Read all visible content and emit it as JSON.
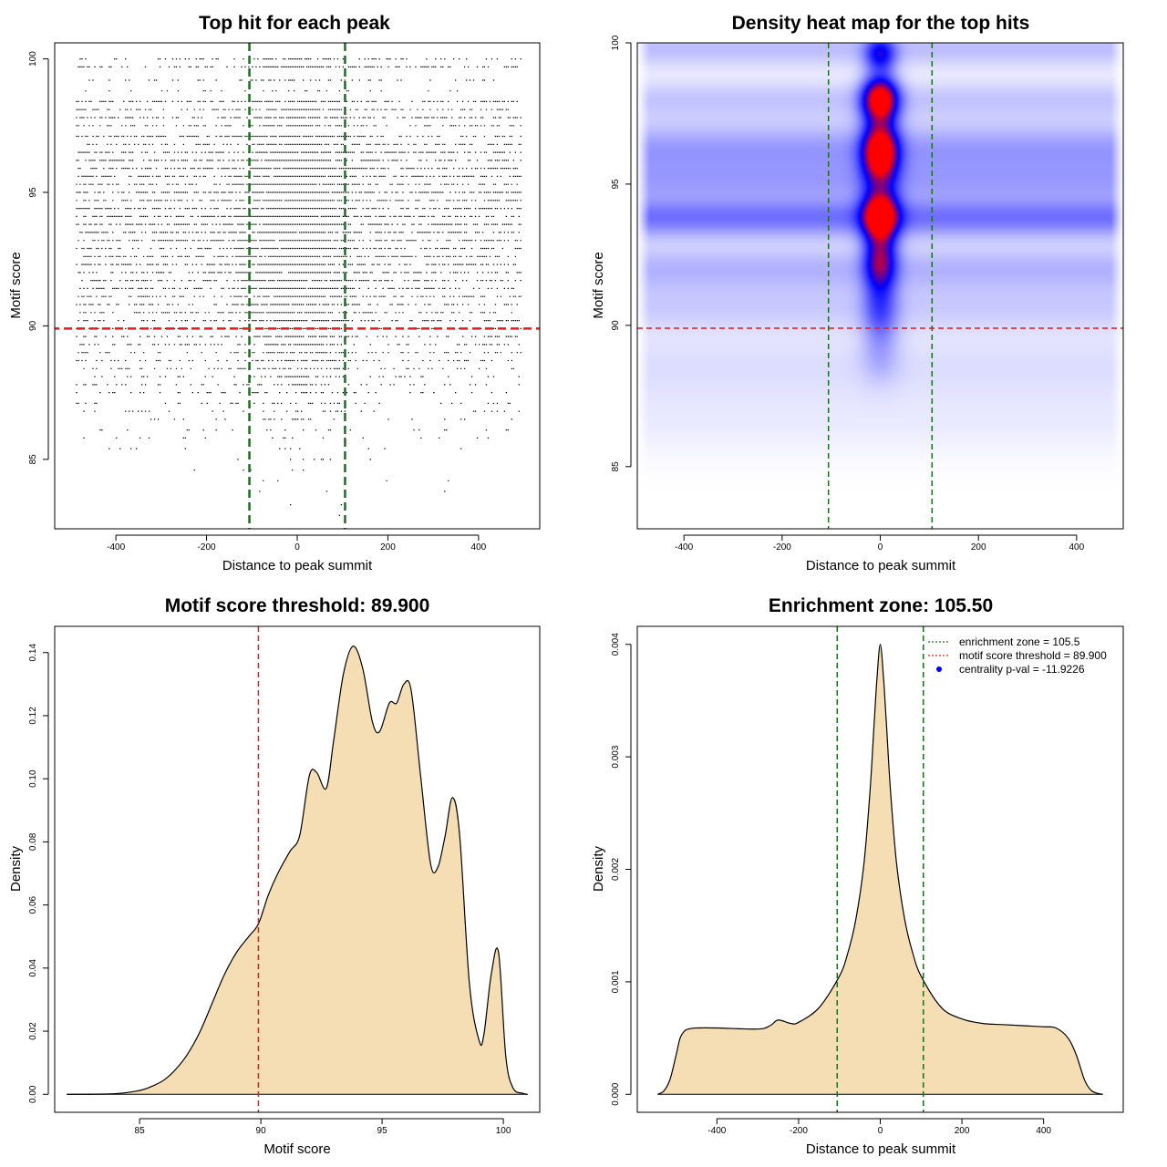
{
  "colors": {
    "threshold": "#E41A1C",
    "zone": "#1B6E1B",
    "fill": "#F5DEB3",
    "heat_low": "#FFFFFF",
    "heat_mid": "#0000FF",
    "heat_high": "#FF0000",
    "legend_point": "#0000FF"
  },
  "chart_data": [
    {
      "id": "scatter",
      "type": "scatter",
      "title": "Top hit for each peak",
      "xlabel": "Distance to peak summit",
      "ylabel": "Motif score",
      "xlim": [
        -535,
        535
      ],
      "ylim": [
        82.4,
        100.6
      ],
      "xticks": [
        -400,
        -200,
        0,
        200,
        400
      ],
      "yticks": [
        85,
        90,
        95,
        100
      ],
      "threshold": 89.9,
      "zone": 105.5,
      "x_range": [
        -490,
        495
      ],
      "score_levels": [
        {
          "y": 100.0,
          "n": 120
        },
        {
          "y": 99.7,
          "n": 170
        },
        {
          "y": 99.2,
          "n": 60
        },
        {
          "y": 98.8,
          "n": 30
        },
        {
          "y": 98.4,
          "n": 200
        },
        {
          "y": 98.1,
          "n": 180
        },
        {
          "y": 97.8,
          "n": 230
        },
        {
          "y": 97.5,
          "n": 160
        },
        {
          "y": 97.1,
          "n": 240
        },
        {
          "y": 96.8,
          "n": 200
        },
        {
          "y": 96.5,
          "n": 260
        },
        {
          "y": 96.2,
          "n": 300
        },
        {
          "y": 95.9,
          "n": 320
        },
        {
          "y": 95.6,
          "n": 300
        },
        {
          "y": 95.3,
          "n": 280
        },
        {
          "y": 95.0,
          "n": 330
        },
        {
          "y": 94.7,
          "n": 310
        },
        {
          "y": 94.4,
          "n": 330
        },
        {
          "y": 94.1,
          "n": 320
        },
        {
          "y": 93.8,
          "n": 360
        },
        {
          "y": 93.5,
          "n": 320
        },
        {
          "y": 93.2,
          "n": 300
        },
        {
          "y": 92.9,
          "n": 300
        },
        {
          "y": 92.6,
          "n": 280
        },
        {
          "y": 92.3,
          "n": 280
        },
        {
          "y": 92.0,
          "n": 280
        },
        {
          "y": 91.7,
          "n": 250
        },
        {
          "y": 91.4,
          "n": 240
        },
        {
          "y": 91.1,
          "n": 220
        },
        {
          "y": 90.8,
          "n": 210
        },
        {
          "y": 90.5,
          "n": 190
        },
        {
          "y": 90.2,
          "n": 180
        },
        {
          "y": 89.9,
          "n": 160
        },
        {
          "y": 89.6,
          "n": 150
        },
        {
          "y": 89.3,
          "n": 140
        },
        {
          "y": 89.0,
          "n": 120
        },
        {
          "y": 88.7,
          "n": 110
        },
        {
          "y": 88.4,
          "n": 95
        },
        {
          "y": 88.1,
          "n": 85
        },
        {
          "y": 87.8,
          "n": 70
        },
        {
          "y": 87.5,
          "n": 60
        },
        {
          "y": 87.1,
          "n": 50
        },
        {
          "y": 86.8,
          "n": 40
        },
        {
          "y": 86.5,
          "n": 32
        },
        {
          "y": 86.1,
          "n": 25
        },
        {
          "y": 85.8,
          "n": 18
        },
        {
          "y": 85.4,
          "n": 12
        },
        {
          "y": 85.0,
          "n": 8
        },
        {
          "y": 84.6,
          "n": 5
        },
        {
          "y": 84.2,
          "n": 4
        },
        {
          "y": 83.8,
          "n": 3
        },
        {
          "y": 83.3,
          "n": 2
        },
        {
          "y": 82.9,
          "n": 1
        }
      ],
      "center_fraction": 0.35,
      "center_sd": 60
    },
    {
      "id": "heatmap",
      "type": "heatmap",
      "title": "Density heat map for the top hits",
      "xlabel": "Distance to peak summit",
      "ylabel": "Motif score",
      "xlim": [
        -495,
        495
      ],
      "ylim": [
        82.8,
        100.0
      ],
      "xticks": [
        -400,
        -200,
        0,
        200,
        400
      ],
      "yticks": [
        85,
        90,
        95,
        100
      ],
      "threshold": 89.9,
      "zone": 105.5,
      "central_blobs": [
        {
          "x": 0,
          "y": 99.6,
          "sx": 22,
          "sy": 0.45,
          "w": 0.45
        },
        {
          "x": 0,
          "y": 98.0,
          "sx": 25,
          "sy": 0.55,
          "w": 0.95
        },
        {
          "x": 0,
          "y": 96.1,
          "sx": 25,
          "sy": 0.75,
          "w": 1.0
        },
        {
          "x": 0,
          "y": 93.9,
          "sx": 25,
          "sy": 0.6,
          "w": 0.95
        },
        {
          "x": 0,
          "y": 92.3,
          "sx": 23,
          "sy": 0.75,
          "w": 0.6
        },
        {
          "x": 0,
          "y": 90.5,
          "sx": 25,
          "sy": 0.8,
          "w": 0.28
        },
        {
          "x": 0,
          "y": 88.9,
          "sx": 28,
          "sy": 0.7,
          "w": 0.1
        }
      ],
      "background_bands": [
        {
          "y": 99.8,
          "sy": 0.5,
          "w": 0.14
        },
        {
          "y": 98.0,
          "sy": 0.5,
          "w": 0.12
        },
        {
          "y": 96.2,
          "sy": 0.7,
          "w": 0.22
        },
        {
          "y": 95.0,
          "sy": 0.5,
          "w": 0.15
        },
        {
          "y": 93.8,
          "sy": 0.5,
          "w": 0.3
        },
        {
          "y": 92.0,
          "sy": 0.6,
          "w": 0.16
        },
        {
          "y": 90.6,
          "sy": 0.6,
          "w": 0.1
        },
        {
          "y": 88.6,
          "sy": 0.9,
          "w": 0.07
        },
        {
          "y": 86.6,
          "sy": 0.9,
          "w": 0.04
        }
      ]
    },
    {
      "id": "score_density",
      "type": "area",
      "title": "Motif score threshold: 89.900",
      "xlabel": "Motif score",
      "ylabel": "Density",
      "xlim": [
        81.5,
        101.5
      ],
      "ylim": [
        -0.0057,
        0.1483
      ],
      "xticks": [
        85,
        90,
        95,
        100
      ],
      "yticks": [
        0.0,
        0.02,
        0.04,
        0.06,
        0.08,
        0.1,
        0.12,
        0.14
      ],
      "ytick_labels": [
        "0.00",
        "0.02",
        "0.04",
        "0.06",
        "0.08",
        "0.10",
        "0.12",
        "0.14"
      ],
      "threshold": 89.9,
      "x": [
        82.0,
        84.0,
        85.0,
        85.5,
        86.0,
        86.5,
        87.0,
        87.5,
        88.0,
        88.5,
        89.0,
        89.5,
        89.9,
        90.3,
        90.7,
        91.2,
        91.6,
        92.0,
        92.3,
        92.7,
        93.0,
        93.4,
        93.8,
        94.2,
        94.6,
        94.9,
        95.3,
        95.6,
        95.9,
        96.2,
        96.6,
        97.0,
        97.3,
        97.6,
        97.9,
        98.2,
        98.6,
        99.0,
        99.2,
        99.5,
        99.8,
        100.1,
        100.4,
        100.8,
        101.0
      ],
      "y": [
        0.0,
        0.0002,
        0.0012,
        0.0025,
        0.0045,
        0.008,
        0.013,
        0.02,
        0.029,
        0.038,
        0.045,
        0.05,
        0.054,
        0.063,
        0.07,
        0.077,
        0.082,
        0.101,
        0.102,
        0.097,
        0.112,
        0.133,
        0.142,
        0.135,
        0.118,
        0.115,
        0.124,
        0.124,
        0.13,
        0.128,
        0.1,
        0.073,
        0.072,
        0.082,
        0.094,
        0.082,
        0.035,
        0.017,
        0.019,
        0.038,
        0.045,
        0.012,
        0.002,
        0.0003,
        0.0
      ]
    },
    {
      "id": "distance_density",
      "type": "area",
      "title": "Enrichment zone: 105.50",
      "xlabel": "Distance to peak summit",
      "ylabel": "Density",
      "xlim": [
        -595,
        595
      ],
      "ylim": [
        -0.00016,
        0.00416
      ],
      "xticks": [
        -400,
        -200,
        0,
        200,
        400
      ],
      "yticks": [
        0.0,
        0.001,
        0.002,
        0.003,
        0.004
      ],
      "ytick_labels": [
        "0.000",
        "0.001",
        "0.002",
        "0.003",
        "0.004"
      ],
      "zone": 105.5,
      "x": [
        -545,
        -530,
        -515,
        -500,
        -490,
        -480,
        -470,
        -450,
        -400,
        -300,
        -270,
        -250,
        -220,
        -200,
        -150,
        -100,
        -80,
        -60,
        -40,
        -25,
        -15,
        -8,
        0,
        8,
        15,
        25,
        40,
        60,
        80,
        100,
        150,
        200,
        250,
        300,
        350,
        400,
        430,
        460,
        480,
        500,
        515,
        530,
        545
      ],
      "y": [
        0.0,
        3e-05,
        0.00013,
        0.00035,
        0.0005,
        0.00056,
        0.00058,
        0.00059,
        0.00059,
        0.00058,
        0.00061,
        0.00066,
        0.00063,
        0.00064,
        0.00077,
        0.00105,
        0.00125,
        0.00155,
        0.00205,
        0.0027,
        0.0033,
        0.0037,
        0.004,
        0.0037,
        0.0033,
        0.0027,
        0.00205,
        0.00155,
        0.00125,
        0.00105,
        0.00077,
        0.00067,
        0.00063,
        0.00062,
        0.00061,
        0.0006,
        0.00059,
        0.0005,
        0.00035,
        0.00013,
        4e-05,
        1e-05,
        0.0
      ]
    }
  ],
  "legend": {
    "items": [
      {
        "label": "enrichment zone = 105.5",
        "symbol": "dotted-green-line"
      },
      {
        "label": "motif score threshold = 89.900",
        "symbol": "dotted-red-line"
      },
      {
        "label": "centrality p-val = -11.9226",
        "symbol": "blue-point"
      }
    ]
  }
}
